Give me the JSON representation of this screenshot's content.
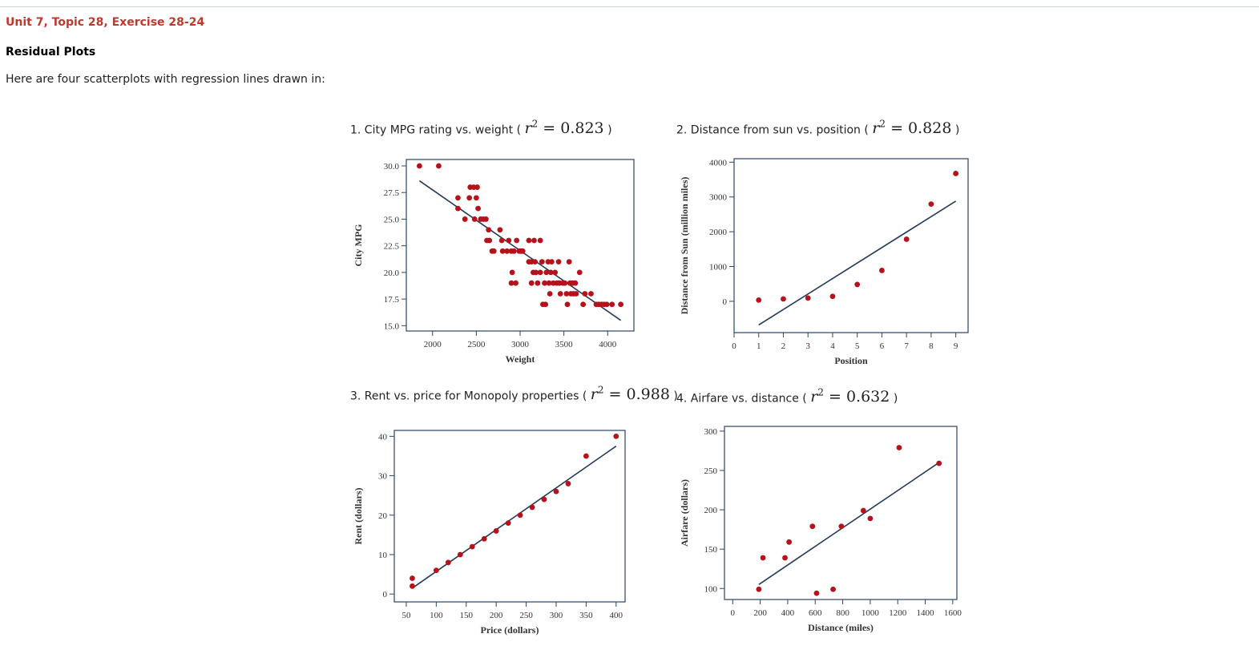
{
  "header": {
    "title": "Unit 7, Topic 28, Exercise 28-24",
    "subtitle": "Residual Plots",
    "intro": "Here are four scatterplots with regression lines drawn in:"
  },
  "colors": {
    "heading": "#c0392b",
    "point": "#b5121b",
    "line": "#233a58",
    "frame": "#2b4466"
  },
  "chart_data": [
    {
      "type": "scatter",
      "title": "1. City MPG rating vs. weight (",
      "stat": "r² = 0.823",
      "stat_label": "r",
      "stat_sup": "2",
      "stat_value": " = 0.823",
      "title_close": ")",
      "xlabel": "Weight",
      "ylabel": "City MPG",
      "xlim": [
        1700,
        4300
      ],
      "ylim": [
        14.5,
        30.6
      ],
      "xticks": [
        2000,
        2500,
        3000,
        3500,
        4000
      ],
      "xtick_labels": [
        "2000",
        "2500",
        "3000",
        "3500",
        "4000"
      ],
      "yticks": [
        15,
        17.5,
        20,
        22.5,
        25,
        27.5,
        30
      ],
      "ytick_labels": [
        "15.0",
        "17.5",
        "20.0",
        "22.5",
        "25.0",
        "27.5",
        "30.0"
      ],
      "points": [
        [
          1850,
          30
        ],
        [
          2070,
          30
        ],
        [
          2290,
          27
        ],
        [
          2290,
          26
        ],
        [
          2370,
          25
        ],
        [
          2420,
          27
        ],
        [
          2430,
          28
        ],
        [
          2470,
          28
        ],
        [
          2480,
          25
        ],
        [
          2500,
          27
        ],
        [
          2510,
          28
        ],
        [
          2520,
          26
        ],
        [
          2550,
          25
        ],
        [
          2580,
          25
        ],
        [
          2610,
          25
        ],
        [
          2620,
          23
        ],
        [
          2640,
          24
        ],
        [
          2650,
          23
        ],
        [
          2680,
          22
        ],
        [
          2700,
          22
        ],
        [
          2770,
          24
        ],
        [
          2790,
          23
        ],
        [
          2800,
          22
        ],
        [
          2850,
          22
        ],
        [
          2870,
          23
        ],
        [
          2900,
          22
        ],
        [
          2900,
          19
        ],
        [
          2910,
          20
        ],
        [
          2930,
          22
        ],
        [
          2950,
          19
        ],
        [
          2960,
          23
        ],
        [
          2990,
          22
        ],
        [
          3010,
          22
        ],
        [
          3030,
          22
        ],
        [
          3100,
          23
        ],
        [
          3100,
          21
        ],
        [
          3130,
          21
        ],
        [
          3130,
          19
        ],
        [
          3150,
          20
        ],
        [
          3160,
          23
        ],
        [
          3170,
          21
        ],
        [
          3180,
          20
        ],
        [
          3200,
          19
        ],
        [
          3230,
          23
        ],
        [
          3230,
          20
        ],
        [
          3250,
          21
        ],
        [
          3260,
          17
        ],
        [
          3280,
          19
        ],
        [
          3290,
          17
        ],
        [
          3300,
          20
        ],
        [
          3320,
          21
        ],
        [
          3330,
          19
        ],
        [
          3340,
          18
        ],
        [
          3350,
          20
        ],
        [
          3360,
          21
        ],
        [
          3380,
          19
        ],
        [
          3400,
          20
        ],
        [
          3420,
          19
        ],
        [
          3440,
          21
        ],
        [
          3450,
          19
        ],
        [
          3460,
          18
        ],
        [
          3490,
          19
        ],
        [
          3510,
          19
        ],
        [
          3530,
          18
        ],
        [
          3540,
          17
        ],
        [
          3560,
          21
        ],
        [
          3570,
          19
        ],
        [
          3580,
          18
        ],
        [
          3600,
          19
        ],
        [
          3610,
          18
        ],
        [
          3630,
          19
        ],
        [
          3640,
          18
        ],
        [
          3680,
          20
        ],
        [
          3720,
          17
        ],
        [
          3740,
          18
        ],
        [
          3810,
          18
        ],
        [
          3870,
          17
        ],
        [
          3900,
          17
        ],
        [
          3930,
          17
        ],
        [
          3960,
          17
        ],
        [
          3990,
          17
        ],
        [
          4050,
          17
        ],
        [
          4150,
          17
        ]
      ],
      "line": [
        [
          1850,
          28.6
        ],
        [
          4150,
          15.5
        ]
      ]
    },
    {
      "type": "scatter",
      "title": "2. Distance from sun vs. position (",
      "stat": "r² = 0.828",
      "stat_label": "r",
      "stat_sup": "2",
      "stat_value": " = 0.828",
      "title_close": ")",
      "xlabel": "Position",
      "ylabel": "Distance from Sun (million miles)",
      "xlim": [
        0,
        9.5
      ],
      "ylim": [
        -900,
        4100
      ],
      "xticks": [
        0,
        1,
        2,
        3,
        4,
        5,
        6,
        7,
        8,
        9
      ],
      "xtick_labels": [
        "0",
        "1",
        "2",
        "3",
        "4",
        "5",
        "6",
        "7",
        "8",
        "9"
      ],
      "yticks": [
        0,
        1000,
        2000,
        3000,
        4000
      ],
      "ytick_labels": [
        "0",
        "1000",
        "2000",
        "3000",
        "4000"
      ],
      "points": [
        [
          1,
          36
        ],
        [
          2,
          67
        ],
        [
          3,
          93
        ],
        [
          4,
          142
        ],
        [
          5,
          484
        ],
        [
          6,
          887
        ],
        [
          7,
          1784
        ],
        [
          8,
          2795
        ],
        [
          9,
          3675
        ]
      ],
      "line": [
        [
          1,
          -680
        ],
        [
          9,
          2880
        ]
      ]
    },
    {
      "type": "scatter",
      "title": "3. Rent vs. price for Monopoly properties (",
      "stat": "r² = 0.988",
      "stat_label": "r",
      "stat_sup": "2",
      "stat_value": " = 0.988",
      "title_close": ")",
      "xlabel": "Price (dollars)",
      "ylabel": "Rent (dollars)",
      "xlim": [
        30,
        415
      ],
      "ylim": [
        -2,
        41.5
      ],
      "xticks": [
        50,
        100,
        150,
        200,
        250,
        300,
        350,
        400
      ],
      "xtick_labels": [
        "50",
        "100",
        "150",
        "200",
        "250",
        "300",
        "350",
        "400"
      ],
      "yticks": [
        0,
        10,
        20,
        30,
        40
      ],
      "ytick_labels": [
        "0",
        "10",
        "20",
        "30",
        "40"
      ],
      "points": [
        [
          60,
          2
        ],
        [
          60,
          4
        ],
        [
          100,
          6
        ],
        [
          120,
          8
        ],
        [
          140,
          10
        ],
        [
          160,
          12
        ],
        [
          180,
          14
        ],
        [
          200,
          16
        ],
        [
          220,
          18
        ],
        [
          240,
          20
        ],
        [
          260,
          22
        ],
        [
          280,
          24
        ],
        [
          300,
          26
        ],
        [
          320,
          28
        ],
        [
          350,
          35
        ],
        [
          400,
          40
        ]
      ],
      "line": [
        [
          60,
          1.5
        ],
        [
          400,
          37.5
        ]
      ]
    },
    {
      "type": "scatter",
      "title": "4. Airfare vs. distance (",
      "stat": "r² = 0.632",
      "stat_label": "r",
      "stat_sup": "2",
      "stat_value": " = 0.632",
      "title_close": ")",
      "xlabel": "Distance (miles)",
      "ylabel": "Airfare (dollars)",
      "xlim": [
        -60,
        1630
      ],
      "ylim": [
        86,
        306
      ],
      "xticks": [
        0,
        200,
        400,
        600,
        800,
        1000,
        1200,
        1400,
        1600
      ],
      "xtick_labels": [
        "0",
        "200",
        "400",
        "600",
        "800",
        "1000",
        "1200",
        "1400",
        "1600"
      ],
      "yticks": [
        100,
        150,
        200,
        250,
        300
      ],
      "ytick_labels": [
        "100",
        "150",
        "200",
        "250",
        "300"
      ],
      "points": [
        [
          190,
          99
        ],
        [
          220,
          139
        ],
        [
          380,
          139
        ],
        [
          410,
          159
        ],
        [
          580,
          179
        ],
        [
          610,
          94
        ],
        [
          730,
          99
        ],
        [
          790,
          179
        ],
        [
          950,
          199
        ],
        [
          1000,
          189
        ],
        [
          1210,
          279
        ],
        [
          1500,
          259
        ]
      ],
      "line": [
        [
          190,
          105
        ],
        [
          1500,
          260
        ]
      ]
    }
  ]
}
